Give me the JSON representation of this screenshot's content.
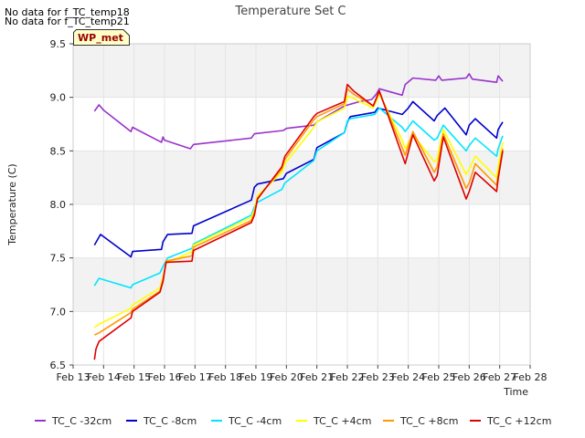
{
  "notes": {
    "line1": "No data for f_TC_temp18",
    "line2": "No data for f_TC_temp21"
  },
  "site_tag": "WP_met",
  "colors": {
    "TC_C -32cm": "#9933cc",
    "TC_C -8cm": "#0000cc",
    "TC_C -4cm": "#00e5ff",
    "TC_C +4cm": "#ffff00",
    "TC_C +8cm": "#ff9900",
    "TC_C +12cm": "#dd0000"
  },
  "chart_data": {
    "type": "line",
    "title": "Temperature Set C",
    "xlabel": "Time",
    "ylabel": "Temperature (C)",
    "xlim": [
      13,
      28
    ],
    "ylim": [
      6.5,
      9.5
    ],
    "xticks": [
      {
        "v": 13,
        "label": "Feb 13"
      },
      {
        "v": 14,
        "label": "Feb 14"
      },
      {
        "v": 15,
        "label": "Feb 15"
      },
      {
        "v": 16,
        "label": "Feb 16"
      },
      {
        "v": 17,
        "label": "Feb 17"
      },
      {
        "v": 18,
        "label": "Feb 18"
      },
      {
        "v": 19,
        "label": "Feb 19"
      },
      {
        "v": 20,
        "label": "Feb 20"
      },
      {
        "v": 21,
        "label": "Feb 21"
      },
      {
        "v": 22,
        "label": "Feb 22"
      },
      {
        "v": 23,
        "label": "Feb 23"
      },
      {
        "v": 24,
        "label": "Feb 24"
      },
      {
        "v": 25,
        "label": "Feb 25"
      },
      {
        "v": 26,
        "label": "Feb 26"
      },
      {
        "v": 27,
        "label": "Feb 27"
      },
      {
        "v": 28,
        "label": "Feb 28"
      }
    ],
    "yticks": [
      {
        "v": 6.5,
        "label": "6.5"
      },
      {
        "v": 7.0,
        "label": "7.0"
      },
      {
        "v": 7.5,
        "label": "7.5"
      },
      {
        "v": 8.0,
        "label": "8.0"
      },
      {
        "v": 8.5,
        "label": "8.5"
      },
      {
        "v": 9.0,
        "label": "9.0"
      },
      {
        "v": 9.5,
        "label": "9.5"
      }
    ],
    "series": [
      {
        "name": "TC_C -32cm",
        "points": [
          [
            13.7,
            8.87
          ],
          [
            13.85,
            8.93
          ],
          [
            14.0,
            8.88
          ],
          [
            14.9,
            8.68
          ],
          [
            14.95,
            8.72
          ],
          [
            15.9,
            8.58
          ],
          [
            15.95,
            8.63
          ],
          [
            16.0,
            8.6
          ],
          [
            16.85,
            8.52
          ],
          [
            16.95,
            8.56
          ],
          [
            18.85,
            8.62
          ],
          [
            18.95,
            8.66
          ],
          [
            19.9,
            8.69
          ],
          [
            20.0,
            8.71
          ],
          [
            20.9,
            8.74
          ],
          [
            21.0,
            8.77
          ],
          [
            21.9,
            8.92
          ],
          [
            22.4,
            8.96
          ],
          [
            22.8,
            8.98
          ],
          [
            22.95,
            9.03
          ],
          [
            23.05,
            9.08
          ],
          [
            23.8,
            9.02
          ],
          [
            23.9,
            9.12
          ],
          [
            24.15,
            9.18
          ],
          [
            24.9,
            9.16
          ],
          [
            25.0,
            9.2
          ],
          [
            25.1,
            9.16
          ],
          [
            25.9,
            9.18
          ],
          [
            26.0,
            9.22
          ],
          [
            26.1,
            9.17
          ],
          [
            26.9,
            9.14
          ],
          [
            26.95,
            9.2
          ],
          [
            27.1,
            9.15
          ]
        ]
      },
      {
        "name": "TC_C -8cm",
        "points": [
          [
            13.7,
            7.62
          ],
          [
            13.9,
            7.72
          ],
          [
            14.9,
            7.51
          ],
          [
            14.95,
            7.56
          ],
          [
            15.9,
            7.58
          ],
          [
            15.95,
            7.65
          ],
          [
            16.1,
            7.72
          ],
          [
            16.9,
            7.73
          ],
          [
            16.95,
            7.8
          ],
          [
            18.85,
            8.04
          ],
          [
            18.95,
            8.16
          ],
          [
            19.05,
            8.19
          ],
          [
            19.9,
            8.24
          ],
          [
            20.0,
            8.29
          ],
          [
            20.9,
            8.42
          ],
          [
            21.0,
            8.53
          ],
          [
            21.9,
            8.67
          ],
          [
            22.0,
            8.77
          ],
          [
            22.1,
            8.82
          ],
          [
            22.9,
            8.86
          ],
          [
            23.0,
            8.9
          ],
          [
            23.8,
            8.84
          ],
          [
            24.0,
            8.9
          ],
          [
            24.15,
            8.96
          ],
          [
            24.85,
            8.78
          ],
          [
            24.95,
            8.83
          ],
          [
            25.2,
            8.9
          ],
          [
            25.9,
            8.65
          ],
          [
            26.0,
            8.74
          ],
          [
            26.2,
            8.8
          ],
          [
            26.9,
            8.62
          ],
          [
            26.95,
            8.7
          ],
          [
            27.1,
            8.77
          ]
        ]
      },
      {
        "name": "TC_C -4cm",
        "points": [
          [
            13.7,
            7.24
          ],
          [
            13.85,
            7.31
          ],
          [
            14.9,
            7.22
          ],
          [
            14.95,
            7.25
          ],
          [
            15.85,
            7.36
          ],
          [
            15.95,
            7.42
          ],
          [
            16.1,
            7.5
          ],
          [
            16.9,
            7.59
          ],
          [
            16.95,
            7.63
          ],
          [
            18.85,
            7.9
          ],
          [
            18.95,
            7.98
          ],
          [
            19.05,
            8.02
          ],
          [
            19.85,
            8.14
          ],
          [
            19.95,
            8.2
          ],
          [
            20.9,
            8.41
          ],
          [
            21.0,
            8.5
          ],
          [
            21.9,
            8.67
          ],
          [
            22.0,
            8.78
          ],
          [
            22.1,
            8.8
          ],
          [
            22.9,
            8.84
          ],
          [
            23.05,
            8.9
          ],
          [
            23.8,
            8.72
          ],
          [
            23.9,
            8.68
          ],
          [
            24.15,
            8.78
          ],
          [
            24.85,
            8.6
          ],
          [
            24.95,
            8.62
          ],
          [
            25.15,
            8.74
          ],
          [
            25.9,
            8.5
          ],
          [
            26.0,
            8.55
          ],
          [
            26.2,
            8.62
          ],
          [
            26.9,
            8.45
          ],
          [
            26.95,
            8.52
          ],
          [
            27.1,
            8.64
          ]
        ]
      },
      {
        "name": "TC_C +4cm",
        "points": [
          [
            13.7,
            6.85
          ],
          [
            13.85,
            6.88
          ],
          [
            14.9,
            7.03
          ],
          [
            14.95,
            7.06
          ],
          [
            15.85,
            7.22
          ],
          [
            15.95,
            7.32
          ],
          [
            16.05,
            7.45
          ],
          [
            16.9,
            7.56
          ],
          [
            16.95,
            7.62
          ],
          [
            18.85,
            7.88
          ],
          [
            18.95,
            7.95
          ],
          [
            19.05,
            8.08
          ],
          [
            19.85,
            8.3
          ],
          [
            19.95,
            8.38
          ],
          [
            20.9,
            8.72
          ],
          [
            21.0,
            8.77
          ],
          [
            21.9,
            8.9
          ],
          [
            22.0,
            9.01
          ],
          [
            22.2,
            8.99
          ],
          [
            22.85,
            8.9
          ],
          [
            23.05,
            9.03
          ],
          [
            23.8,
            8.6
          ],
          [
            23.9,
            8.52
          ],
          [
            24.15,
            8.65
          ],
          [
            24.85,
            8.4
          ],
          [
            24.95,
            8.42
          ],
          [
            25.15,
            8.7
          ],
          [
            25.9,
            8.28
          ],
          [
            26.0,
            8.33
          ],
          [
            26.2,
            8.45
          ],
          [
            26.9,
            8.25
          ],
          [
            26.95,
            8.35
          ],
          [
            27.1,
            8.58
          ]
        ]
      },
      {
        "name": "TC_C +8cm",
        "points": [
          [
            13.7,
            6.78
          ],
          [
            13.85,
            6.8
          ],
          [
            14.9,
            6.99
          ],
          [
            14.95,
            7.02
          ],
          [
            15.85,
            7.19
          ],
          [
            15.95,
            7.3
          ],
          [
            16.05,
            7.47
          ],
          [
            16.9,
            7.52
          ],
          [
            16.95,
            7.6
          ],
          [
            18.85,
            7.85
          ],
          [
            18.95,
            7.92
          ],
          [
            19.05,
            8.06
          ],
          [
            19.85,
            8.33
          ],
          [
            19.95,
            8.42
          ],
          [
            20.9,
            8.79
          ],
          [
            21.0,
            8.82
          ],
          [
            21.9,
            8.94
          ],
          [
            22.0,
            9.08
          ],
          [
            22.2,
            9.03
          ],
          [
            22.85,
            8.92
          ],
          [
            23.05,
            9.05
          ],
          [
            23.8,
            8.53
          ],
          [
            23.9,
            8.46
          ],
          [
            24.15,
            8.68
          ],
          [
            24.85,
            8.3
          ],
          [
            24.95,
            8.35
          ],
          [
            25.15,
            8.66
          ],
          [
            25.9,
            8.15
          ],
          [
            26.0,
            8.2
          ],
          [
            26.2,
            8.38
          ],
          [
            26.9,
            8.18
          ],
          [
            26.95,
            8.28
          ],
          [
            27.1,
            8.52
          ]
        ]
      },
      {
        "name": "TC_C +12cm",
        "points": [
          [
            13.7,
            6.55
          ],
          [
            13.75,
            6.65
          ],
          [
            13.85,
            6.72
          ],
          [
            14.9,
            6.94
          ],
          [
            14.95,
            7.0
          ],
          [
            15.85,
            7.18
          ],
          [
            15.95,
            7.28
          ],
          [
            16.05,
            7.46
          ],
          [
            16.9,
            7.47
          ],
          [
            16.95,
            7.57
          ],
          [
            18.85,
            7.83
          ],
          [
            18.95,
            7.9
          ],
          [
            19.05,
            8.05
          ],
          [
            19.85,
            8.35
          ],
          [
            19.95,
            8.45
          ],
          [
            20.9,
            8.82
          ],
          [
            21.0,
            8.85
          ],
          [
            21.9,
            8.96
          ],
          [
            22.0,
            9.12
          ],
          [
            22.2,
            9.06
          ],
          [
            22.85,
            8.92
          ],
          [
            23.05,
            9.06
          ],
          [
            23.8,
            8.46
          ],
          [
            23.9,
            8.38
          ],
          [
            24.15,
            8.65
          ],
          [
            24.85,
            8.22
          ],
          [
            24.95,
            8.27
          ],
          [
            25.15,
            8.63
          ],
          [
            25.9,
            8.05
          ],
          [
            26.0,
            8.12
          ],
          [
            26.2,
            8.3
          ],
          [
            26.9,
            8.12
          ],
          [
            26.95,
            8.24
          ],
          [
            27.1,
            8.5
          ]
        ]
      }
    ]
  }
}
